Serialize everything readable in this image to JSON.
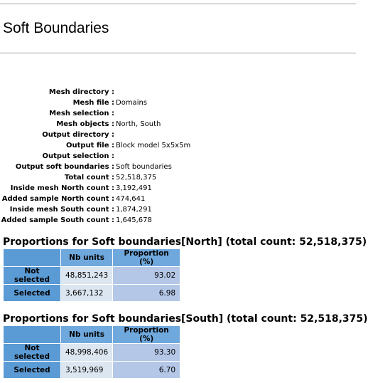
{
  "header": {
    "title": "Soft Boundaries"
  },
  "parameters": [
    {
      "label": "Mesh directory :"
    },
    {
      "label": "Mesh file :",
      "value": "Domains"
    },
    {
      "label": "Mesh selection :"
    },
    {
      "label": "Mesh objects :",
      "value": "North, South"
    },
    {
      "label": "Output directory :"
    },
    {
      "label": "Output file :",
      "value": "Block model 5x5x5m"
    },
    {
      "label": "Output selection :"
    },
    {
      "label": "Output soft boundaries :",
      "value": "Soft boundaries"
    },
    {
      "label": "Total count :",
      "value": "52,518,375"
    },
    {
      "label": "Inside mesh North count :",
      "value": "3,192,491"
    },
    {
      "label": "Added sample North count :",
      "value": "474,641"
    },
    {
      "label": "Inside mesh South count :",
      "value": "1,874,291"
    },
    {
      "label": "Added sample South count :",
      "value": "1,645,678"
    }
  ],
  "sections": [
    {
      "heading": "Proportions for Soft boundaries[North] (total count: 52,518,375)",
      "table": {
        "columns": [
          "Nb units",
          "Proportion (%)"
        ],
        "rows": [
          [
            "Not selected",
            "48,851,243",
            "93.02"
          ],
          [
            "Selected",
            "3,667,132",
            "6.98"
          ]
        ]
      }
    },
    {
      "heading": "Proportions for Soft boundaries[South] (total count: 52,518,375)",
      "table": {
        "columns": [
          "Nb units",
          "Proportion (%)"
        ],
        "rows": [
          [
            "Not selected",
            "48,998,406",
            "93.30"
          ],
          [
            "Selected",
            "3,519,969",
            "6.70"
          ]
        ]
      }
    }
  ]
}
